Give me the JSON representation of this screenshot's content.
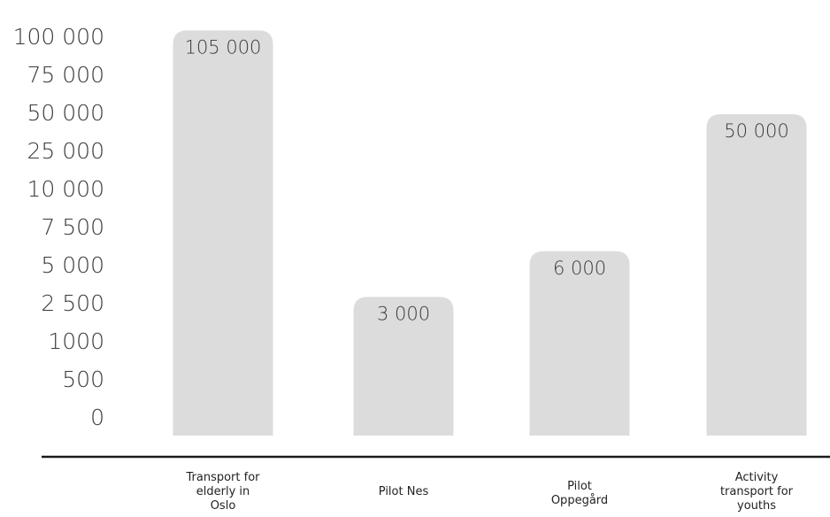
{
  "chart_data": {
    "type": "bar",
    "title": "",
    "xlabel": "",
    "ylabel": "",
    "y_axis_ticks": [
      "0",
      "500",
      "1000",
      "2 500",
      "5 000",
      "7 500",
      "10 000",
      "25 000",
      "50 000",
      "75 000",
      "100 000"
    ],
    "categories": [
      [
        "Transport for",
        "elderly in",
        "Oslo"
      ],
      [
        "Pilot Nes"
      ],
      [
        "Pilot",
        "Oppegård"
      ],
      [
        "Activity",
        "transport for",
        "youths"
      ]
    ],
    "values": [
      105000,
      3000,
      6000,
      50000
    ],
    "data_labels": [
      "105 000",
      "3 000",
      "6 000",
      "50 000"
    ],
    "grid": false,
    "legend": "none",
    "bar_color": "#dcdcdc",
    "axis_color": "#1a1a1a"
  }
}
